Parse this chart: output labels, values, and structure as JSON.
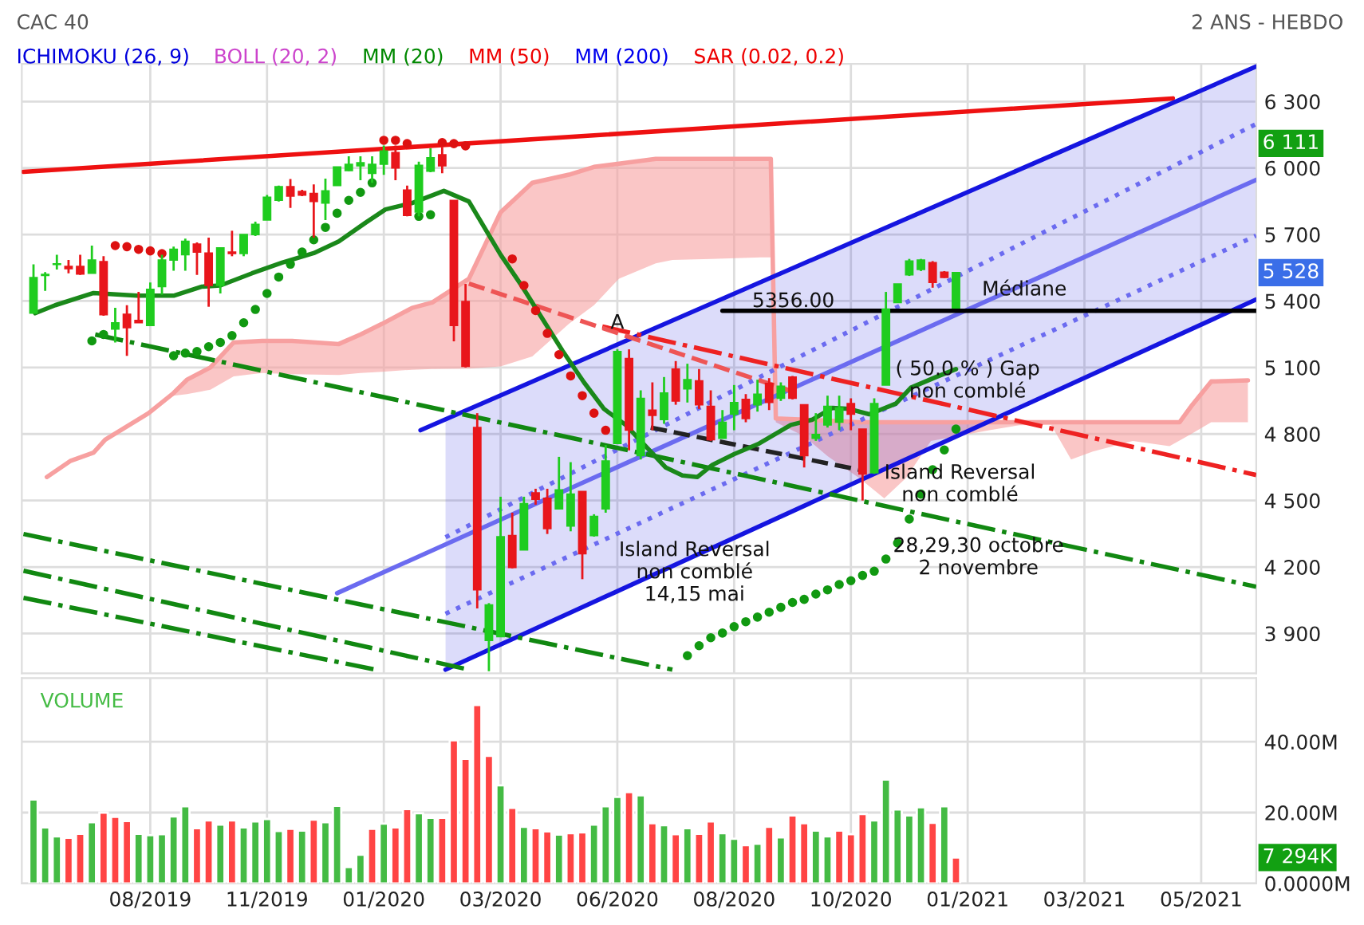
{
  "chart_data": [
    {
      "type": "candlestick",
      "title": "CAC 40",
      "subtitle": "2 ANS - HEBDO",
      "annotations": [
        "ICHIMOKU (26, 9)",
        "BOLL (20, 2)",
        "MM (20)",
        "MM (50)",
        "MM (200)",
        "SAR (0.02, 0.2)",
        {
          "text": "6 111",
          "y": 6111
        },
        {
          "text": "5 528",
          "y": 5528
        },
        {
          "text": "A",
          "x": "2020-06-05",
          "y": 5300
        },
        {
          "text": "( 50.0 % ) Gap\nnon comblé",
          "x": "2021-01-01",
          "y": 5040
        },
        {
          "text": "Médiane",
          "x": "2021-02-04",
          "y": 5450
        },
        "5356.00",
        "Island Reversal\nnon comblé\n14,15 mai",
        "Island Reversal\nnon comblé",
        "28,29,30 octobre\n2 novembre"
      ],
      "xlim": [
        "2019-06-14",
        "2021-06-23"
      ],
      "ylim": [
        3720,
        6470
      ],
      "xticks": [
        {
          "value": "2019-08-30",
          "label": null
        },
        {
          "value": "2019-11-08",
          "label": null
        },
        {
          "value": "2020-01-17",
          "label": null
        },
        {
          "value": "2020-03-27",
          "label": null
        },
        {
          "value": "2020-06-05",
          "label": null
        },
        {
          "value": "2020-08-14",
          "label": null
        },
        {
          "value": "2020-10-23",
          "label": null
        },
        {
          "value": "2021-01-01",
          "label": null
        },
        {
          "value": "2021-03-12",
          "label": null
        },
        {
          "value": "2021-05-21",
          "label": null
        }
      ],
      "yticks": [
        {
          "value": 3900,
          "label": "3 900"
        },
        {
          "value": 4200,
          "label": "4 200"
        },
        {
          "value": 4500,
          "label": "4 500"
        },
        {
          "value": 4800,
          "label": "4 800"
        },
        {
          "value": 5100,
          "label": "5 100"
        },
        {
          "value": 5400,
          "label": "5 400"
        },
        {
          "value": 5700,
          "label": "5 700"
        },
        {
          "value": 6000,
          "label": "6 000"
        },
        {
          "value": 6300,
          "label": "6 300"
        }
      ],
      "tick_labels": "y",
      "grid": true,
      "series": [
        {
          "type": "line",
          "color": "#f7a0a0",
          "x": [
            "2019-06-29",
            "2019-07-13",
            "2019-07-27",
            "2019-08-03",
            "2019-08-29",
            "2019-09-13",
            "2019-09-21",
            "2019-10-05",
            "2019-10-19",
            "2019-11-05",
            "2019-11-23",
            "2019-12-21",
            "2020-01-03",
            "2020-01-16",
            "2020-02-03",
            "2020-02-15",
            "2020-03-08",
            "2020-03-27",
            "2020-04-15",
            "2020-05-07",
            "2020-05-22",
            "2020-06-06",
            "2020-06-28",
            "2020-07-08",
            "2020-07-31",
            "2020-08-30",
            "2020-09-05",
            "2020-09-08",
            "2020-09-25",
            "2020-10-09",
            "2020-10-28",
            "2020-11-12",
            "2020-11-25",
            "2020-12-10",
            "2021-01-14",
            "2021-02-01",
            "2021-02-20",
            "2021-03-04",
            "2021-03-17",
            "2021-04-10",
            "2021-05-02",
            "2021-05-08",
            "2021-05-15",
            "2021-05-27",
            "2021-06-18"
          ],
          "values": [
            4606,
            4678,
            4716,
            4774,
            4894,
            4985,
            5045,
            5100,
            5213,
            5220,
            5220,
            5206,
            5249,
            5297,
            5369,
            5393,
            5500,
            5800,
            5933,
            5970,
            6005,
            6020,
            6041,
            6041,
            6041,
            6041,
            6041,
            4870,
            4865,
            4860,
            4853,
            4853,
            4853,
            4853,
            4853,
            4853,
            4853,
            4853,
            4853,
            4853,
            4853,
            4853,
            4925,
            5037,
            5042
          ],
          "upper": [
            4606,
            4678,
            4716,
            4774,
            4894,
            4985,
            5045,
            5100,
            5213,
            5220,
            5220,
            5206,
            5249,
            5297,
            5369,
            5393,
            5500,
            5800,
            5933,
            5970,
            6005,
            6020,
            6041,
            6041,
            6041,
            6041,
            6041,
            4870,
            4865,
            4860,
            4853,
            4853,
            4853,
            4853,
            4853,
            4853,
            4853,
            4853,
            4853,
            4853,
            4853,
            4853,
            4925,
            5037,
            5042
          ],
          "lower": [
            4606,
            4678,
            4716,
            4774,
            4894,
            4973,
            4980,
            5000,
            5060,
            5075,
            5070,
            5066,
            5075,
            5081,
            5090,
            5093,
            5095,
            5105,
            5150,
            5297,
            5381,
            5501,
            5570,
            5585,
            5590,
            5597,
            5597,
            4853,
            4790,
            4700,
            4601,
            4510,
            4601,
            4769,
            4817,
            4840,
            4841,
            4685,
            4721,
            4769,
            4745,
            4770,
            4800,
            4853,
            4853
          ]
        },
        {
          "type": "line",
          "color": "#ee1111",
          "line_style": "solid",
          "x": [
            "2019-06-15",
            "2021-05-04"
          ],
          "values": [
            5983,
            6314
          ]
        },
        {
          "type": "line",
          "color": "#1515e0",
          "line_style": "solid",
          "x": [
            "2020-02-08",
            "2021-06-23"
          ],
          "values": [
            4817,
            6458
          ]
        },
        {
          "type": "line",
          "color": "#1515e0",
          "line_style": "solid",
          "x": [
            "2020-02-23",
            "2021-06-23"
          ],
          "values": [
            3737,
            5407
          ],
          "lower": [
            3737,
            5407
          ],
          "upper": [
            4867,
            6458
          ]
        },
        {
          "type": "line",
          "color": "#6b6bf0",
          "line_style": "solid",
          "x": [
            "2019-12-20",
            "2021-06-23"
          ],
          "values": [
            4082,
            5947
          ]
        },
        {
          "type": "line",
          "color": "#6b6bf0",
          "line_style": "dotted",
          "x": [
            "2020-02-23",
            "2021-06-23"
          ],
          "values": [
            4334,
            6199
          ]
        },
        {
          "type": "line",
          "color": "#6b6bf0",
          "line_style": "dotted",
          "x": [
            "2020-02-23",
            "2021-06-23"
          ],
          "values": [
            3989,
            5695
          ]
        },
        {
          "type": "line",
          "color": "#ee2222",
          "line_style": "dashdot",
          "x": [
            "2020-05-27",
            "2021-06-23"
          ],
          "values": [
            5285,
            4615
          ]
        },
        {
          "type": "line",
          "color": "#ee5555",
          "line_style": "dashed",
          "x": [
            "2020-03-08",
            "2020-09-16"
          ],
          "values": [
            5479,
            4997
          ]
        },
        {
          "type": "line",
          "color": "#118811",
          "line_style": "dashdot",
          "x": [
            "2019-07-28",
            "2021-06-23"
          ],
          "values": [
            5249,
            4111
          ]
        },
        {
          "type": "line",
          "color": "#118811",
          "line_style": "dashdot",
          "x": [
            "2019-06-15",
            "2020-07-08"
          ],
          "values": [
            4349,
            3737
          ]
        },
        {
          "type": "line",
          "color": "#118811",
          "line_style": "dashdot",
          "x": [
            "2019-06-15",
            "2020-03-08"
          ],
          "values": [
            4183,
            3737
          ]
        },
        {
          "type": "line",
          "color": "#118811",
          "line_style": "dashdot",
          "x": [
            "2019-06-15",
            "2020-01-12"
          ],
          "values": [
            4061,
            3737
          ]
        },
        {
          "type": "line",
          "color": "#222222",
          "line_style": "dashed",
          "x": [
            "2020-06-25",
            "2020-10-29"
          ],
          "values": [
            4829,
            4637
          ]
        },
        {
          "type": "line",
          "color": "#000000",
          "line_style": "solid",
          "x": [
            "2020-08-07",
            "2021-06-23"
          ],
          "values": [
            5356,
            5356
          ]
        },
        {
          "type": "line",
          "color": "#1a881a",
          "line_style": "solid",
          "x": [
            "2019-06-22",
            "2019-07-04",
            "2019-07-27",
            "2019-08-22",
            "2019-09-13",
            "2019-09-30",
            "2019-10-11",
            "2019-10-30",
            "2019-11-17",
            "2019-12-06",
            "2019-12-21",
            "2020-01-06",
            "2020-01-18",
            "2020-02-03",
            "2020-02-22",
            "2020-03-08",
            "2020-03-27",
            "2020-04-09",
            "2020-04-21",
            "2020-05-03",
            "2020-05-16",
            "2020-05-28",
            "2020-06-10",
            "2020-06-22",
            "2020-07-04",
            "2020-07-14",
            "2020-07-23",
            "2020-08-01",
            "2020-08-14",
            "2020-08-29",
            "2020-09-17",
            "2020-09-30",
            "2020-10-12",
            "2020-10-22",
            "2020-11-03",
            "2020-11-19",
            "2020-11-28",
            "2020-12-13",
            "2020-12-25"
          ],
          "values": [
            5345,
            5381,
            5436,
            5424,
            5424,
            5465,
            5470,
            5525,
            5573,
            5616,
            5669,
            5753,
            5813,
            5842,
            5897,
            5849,
            5609,
            5465,
            5321,
            5177,
            5033,
            4913,
            4841,
            4745,
            4649,
            4613,
            4606,
            4661,
            4709,
            4757,
            4841,
            4865,
            4918,
            4913,
            4889,
            4937,
            5009,
            5057,
            5093
          ]
        },
        {
          "type": "scatter",
          "color": "#119911",
          "marker": "circle",
          "x": [
            "2019-07-26",
            "2019-08-02",
            "2019-09-13",
            "2019-09-20",
            "2019-09-27",
            "2019-10-04",
            "2019-10-11",
            "2019-10-18",
            "2019-10-25",
            "2019-11-01",
            "2019-11-08",
            "2019-11-15",
            "2019-11-22",
            "2019-11-29",
            "2019-12-06",
            "2019-12-13",
            "2019-12-20",
            "2019-12-27",
            "2020-01-03",
            "2020-01-10",
            "2020-02-07",
            "2020-02-14",
            "2020-07-17",
            "2020-07-24",
            "2020-07-31",
            "2020-08-07",
            "2020-08-14",
            "2020-08-21",
            "2020-08-28",
            "2020-09-04",
            "2020-09-11",
            "2020-09-18",
            "2020-09-25",
            "2020-10-02",
            "2020-10-09",
            "2020-10-16",
            "2020-10-23",
            "2020-10-30",
            "2020-11-06",
            "2020-11-13",
            "2020-11-20",
            "2020-11-27",
            "2020-12-04",
            "2020-12-11",
            "2020-12-18",
            "2020-12-25"
          ],
          "values": [
            5220,
            5249,
            5153,
            5165,
            5172,
            5194,
            5213,
            5244,
            5302,
            5362,
            5434,
            5508,
            5566,
            5621,
            5676,
            5732,
            5796,
            5854,
            5890,
            5933,
            5782,
            5789,
            3800,
            3845,
            3881,
            3902,
            3931,
            3953,
            3974,
            3996,
            4018,
            4040,
            4054,
            4078,
            4097,
            4121,
            4138,
            4162,
            4181,
            4236,
            4308,
            4416,
            4529,
            4639,
            4728,
            4822
          ]
        },
        {
          "type": "scatter",
          "color": "#dd1111",
          "marker": "circle",
          "x": [
            "2019-08-09",
            "2019-08-16",
            "2019-08-23",
            "2019-08-30",
            "2019-09-06",
            "2020-01-17",
            "2020-01-24",
            "2020-01-31",
            "2020-02-21",
            "2020-02-28",
            "2020-03-06",
            "2020-04-03",
            "2020-04-10",
            "2020-04-17",
            "2020-04-24",
            "2020-05-01",
            "2020-05-08",
            "2020-05-15",
            "2020-05-22",
            "2020-05-29"
          ],
          "values": [
            5650,
            5645,
            5633,
            5626,
            5614,
            6125,
            6125,
            6110,
            6115,
            6110,
            6100,
            5590,
            5470,
            5357,
            5254,
            5158,
            5062,
            4973,
            4894,
            4817
          ]
        },
        {
          "type": "candlestick",
          "x": [
            "2019-06-21",
            "2019-06-28",
            "2019-07-05",
            "2019-07-12",
            "2019-07-19",
            "2019-07-26",
            "2019-08-02",
            "2019-08-09",
            "2019-08-16",
            "2019-08-23",
            "2019-08-30",
            "2019-09-06",
            "2019-09-13",
            "2019-09-20",
            "2019-09-27",
            "2019-10-04",
            "2019-10-11",
            "2019-10-18",
            "2019-10-25",
            "2019-11-01",
            "2019-11-08",
            "2019-11-15",
            "2019-11-22",
            "2019-11-29",
            "2019-12-06",
            "2019-12-13",
            "2019-12-20",
            "2019-12-27",
            "2020-01-03",
            "2020-01-10",
            "2020-01-17",
            "2020-01-24",
            "2020-01-31",
            "2020-02-07",
            "2020-02-14",
            "2020-02-21",
            "2020-02-28",
            "2020-03-06",
            "2020-03-13",
            "2020-03-20",
            "2020-03-27",
            "2020-04-03",
            "2020-04-10",
            "2020-04-17",
            "2020-04-24",
            "2020-05-01",
            "2020-05-08",
            "2020-05-15",
            "2020-05-22",
            "2020-05-29",
            "2020-06-05",
            "2020-06-12",
            "2020-06-19",
            "2020-06-26",
            "2020-07-03",
            "2020-07-10",
            "2020-07-17",
            "2020-07-24",
            "2020-07-31",
            "2020-08-07",
            "2020-08-14",
            "2020-08-21",
            "2020-08-28",
            "2020-09-04",
            "2020-09-11",
            "2020-09-18",
            "2020-09-25",
            "2020-10-02",
            "2020-10-09",
            "2020-10-16",
            "2020-10-23",
            "2020-10-30",
            "2020-11-06",
            "2020-11-13",
            "2020-11-20",
            "2020-11-27",
            "2020-12-04",
            "2020-12-11",
            "2020-12-18",
            "2020-12-25"
          ],
          "ohlc": [
            [
              5345,
              5565,
              5345,
              5506
            ],
            [
              5515,
              5530,
              5446,
              5520
            ],
            [
              5565,
              5609,
              5542,
              5568
            ],
            [
              5556,
              5585,
              5525,
              5546
            ],
            [
              5556,
              5609,
              5518,
              5522
            ],
            [
              5525,
              5650,
              5525,
              5585
            ],
            [
              5578,
              5602,
              5333,
              5338
            ],
            [
              5273,
              5369,
              5213,
              5302
            ],
            [
              5340,
              5381,
              5153,
              5280
            ],
            [
              5312,
              5441,
              5302,
              5302
            ],
            [
              5290,
              5484,
              5290,
              5453
            ],
            [
              5465,
              5609,
              5429,
              5585
            ],
            [
              5585,
              5645,
              5537,
              5633
            ],
            [
              5609,
              5681,
              5537,
              5669
            ],
            [
              5657,
              5664,
              5518,
              5621
            ],
            [
              5616,
              5686,
              5374,
              5470
            ],
            [
              5470,
              5640,
              5434,
              5640
            ],
            [
              5621,
              5717,
              5602,
              5614
            ],
            [
              5614,
              5700,
              5602,
              5700
            ],
            [
              5700,
              5758,
              5693,
              5746
            ],
            [
              5765,
              5878,
              5765,
              5868
            ],
            [
              5854,
              5921,
              5849,
              5916
            ],
            [
              5916,
              5950,
              5820,
              5873
            ],
            [
              5894,
              5902,
              5873,
              5878
            ],
            [
              5885,
              5926,
              5686,
              5849
            ],
            [
              5842,
              5952,
              5765,
              5897
            ],
            [
              5921,
              6005,
              5921,
              6005
            ],
            [
              5988,
              6053,
              5986,
              6017
            ],
            [
              6010,
              6053,
              5945,
              6024
            ],
            [
              5976,
              6053,
              5933,
              6017
            ],
            [
              6017,
              6101,
              5969,
              6077
            ],
            [
              6070,
              6101,
              5945,
              6000
            ],
            [
              5901,
              5921,
              5782,
              5786
            ],
            [
              5801,
              6029,
              5782,
              6012
            ],
            [
              5986,
              6089,
              5981,
              6046
            ],
            [
              6060,
              6094,
              5976,
              6010
            ],
            [
              5854,
              5854,
              5218,
              5290
            ],
            [
              5398,
              5477,
              5100,
              5105
            ],
            [
              4829,
              4894,
              4013,
              4097
            ],
            [
              3869,
              4037,
              3730,
              4029
            ],
            [
              3886,
              4517,
              3886,
              4337
            ],
            [
              4342,
              4445,
              4194,
              4198
            ],
            [
              4277,
              4517,
              4277,
              4486
            ],
            [
              4534,
              4553,
              4481,
              4505
            ],
            [
              4510,
              4553,
              4349,
              4373
            ],
            [
              4462,
              4697,
              4462,
              4548
            ],
            [
              4385,
              4673,
              4361,
              4529
            ],
            [
              4541,
              4541,
              4145,
              4260
            ],
            [
              4342,
              4438,
              4337,
              4428
            ],
            [
              4462,
              4750,
              4445,
              4678
            ],
            [
              4757,
              5182,
              4757,
              5172
            ],
            [
              5141,
              5182,
              4726,
              4817
            ],
            [
              4702,
              4997,
              4685,
              4961
            ],
            [
              4908,
              5033,
              4817,
              4884
            ],
            [
              4865,
              5057,
              4846,
              4985
            ],
            [
              5093,
              5129,
              4932,
              4949
            ],
            [
              5004,
              5117,
              4942,
              5045
            ],
            [
              5040,
              5093,
              4913,
              4932
            ],
            [
              4925,
              4997,
              4769,
              4774
            ],
            [
              4781,
              4908,
              4781,
              4853
            ],
            [
              4889,
              5021,
              4817,
              4942
            ],
            [
              4956,
              4980,
              4853,
              4870
            ],
            [
              4932,
              5045,
              4901,
              4980
            ],
            [
              5028,
              5052,
              4908,
              4942
            ],
            [
              4961,
              5033,
              4949,
              5016
            ],
            [
              5057,
              5062,
              4956,
              4961
            ],
            [
              4932,
              4932,
              4649,
              4702
            ],
            [
              4781,
              4894,
              4769,
              4798
            ],
            [
              4841,
              4973,
              4829,
              4925
            ],
            [
              4853,
              4973,
              4817,
              4918
            ],
            [
              4937,
              4961,
              4817,
              4889
            ],
            [
              4822,
              4822,
              4500,
              4620
            ],
            [
              4625,
              4961,
              4620,
              4937
            ],
            [
              5021,
              5441,
              5021,
              5364
            ],
            [
              5393,
              5477,
              5393,
              5477
            ],
            [
              5518,
              5590,
              5513,
              5580
            ],
            [
              5542,
              5590,
              5535,
              5585
            ],
            [
              5573,
              5580,
              5460,
              5484
            ],
            [
              5530,
              5535,
              5504,
              5506
            ],
            [
              5369,
              5528,
              5369,
              5528
            ]
          ],
          "colors": [
            "#1fcc1f",
            "#1fcc1f",
            "#1fcc1f",
            "#e8161b",
            "#e8161b",
            "#1fcc1f",
            "#e8161b",
            "#1fcc1f",
            "#e8161b",
            "#e8161b",
            "#1fcc1f",
            "#1fcc1f",
            "#1fcc1f",
            "#1fcc1f",
            "#e8161b",
            "#e8161b",
            "#1fcc1f",
            "#e8161b",
            "#1fcc1f",
            "#1fcc1f",
            "#1fcc1f",
            "#1fcc1f",
            "#e8161b",
            "#e8161b",
            "#e8161b",
            "#1fcc1f",
            "#1fcc1f",
            "#1fcc1f",
            "#1fcc1f",
            "#1fcc1f",
            "#1fcc1f",
            "#e8161b",
            "#e8161b",
            "#1fcc1f",
            "#1fcc1f",
            "#e8161b",
            "#e8161b",
            "#e8161b",
            "#e8161b",
            "#1fcc1f",
            "#1fcc1f",
            "#e8161b",
            "#1fcc1f",
            "#e8161b",
            "#e8161b",
            "#1fcc1f",
            "#1fcc1f",
            "#e8161b",
            "#1fcc1f",
            "#1fcc1f",
            "#1fcc1f",
            "#e8161b",
            "#1fcc1f",
            "#e8161b",
            "#1fcc1f",
            "#e8161b",
            "#1fcc1f",
            "#e8161b",
            "#e8161b",
            "#1fcc1f",
            "#1fcc1f",
            "#e8161b",
            "#1fcc1f",
            "#e8161b",
            "#1fcc1f",
            "#e8161b",
            "#e8161b",
            "#1fcc1f",
            "#1fcc1f",
            "#1fcc1f",
            "#e8161b",
            "#e8161b",
            "#1fcc1f",
            "#1fcc1f",
            "#1fcc1f",
            "#1fcc1f",
            "#1fcc1f",
            "#e8161b",
            "#e8161b",
            "#1fcc1f"
          ]
        }
      ]
    },
    {
      "type": "bar",
      "annotations": [
        "VOLUME",
        "7 294K"
      ],
      "x": [
        "2019-06-21",
        "2019-06-28",
        "2019-07-05",
        "2019-07-12",
        "2019-07-19",
        "2019-07-26",
        "2019-08-02",
        "2019-08-09",
        "2019-08-16",
        "2019-08-23",
        "2019-08-30",
        "2019-09-06",
        "2019-09-13",
        "2019-09-20",
        "2019-09-27",
        "2019-10-04",
        "2019-10-11",
        "2019-10-18",
        "2019-10-25",
        "2019-11-01",
        "2019-11-08",
        "2019-11-15",
        "2019-11-22",
        "2019-11-29",
        "2019-12-06",
        "2019-12-13",
        "2019-12-20",
        "2019-12-27",
        "2020-01-03",
        "2020-01-10",
        "2020-01-17",
        "2020-01-24",
        "2020-01-31",
        "2020-02-07",
        "2020-02-14",
        "2020-02-21",
        "2020-02-28",
        "2020-03-06",
        "2020-03-13",
        "2020-03-20",
        "2020-03-27",
        "2020-04-03",
        "2020-04-10",
        "2020-04-17",
        "2020-04-24",
        "2020-05-01",
        "2020-05-08",
        "2020-05-15",
        "2020-05-22",
        "2020-05-29",
        "2020-06-05",
        "2020-06-12",
        "2020-06-19",
        "2020-06-26",
        "2020-07-03",
        "2020-07-10",
        "2020-07-17",
        "2020-07-24",
        "2020-07-31",
        "2020-08-07",
        "2020-08-14",
        "2020-08-21",
        "2020-08-28",
        "2020-09-04",
        "2020-09-11",
        "2020-09-18",
        "2020-09-25",
        "2020-10-02",
        "2020-10-09",
        "2020-10-16",
        "2020-10-23",
        "2020-10-30",
        "2020-11-06",
        "2020-11-13",
        "2020-11-20",
        "2020-11-27",
        "2020-12-04",
        "2020-12-11",
        "2020-12-18",
        "2020-12-25"
      ],
      "values": [
        23.7,
        15.8,
        13.3,
        12.9,
        14.0,
        17.3,
        20.0,
        18.8,
        17.6,
        14.0,
        13.6,
        13.9,
        18.9,
        21.8,
        15.6,
        17.8,
        16.6,
        17.8,
        15.8,
        17.5,
        18.2,
        14.8,
        15.4,
        14.9,
        18.0,
        17.3,
        21.9,
        4.6,
        8.1,
        15.4,
        16.9,
        15.8,
        21.0,
        19.8,
        18.5,
        18.5,
        40.4,
        35.2,
        50.4,
        36.0,
        27.7,
        21.3,
        16.0,
        15.6,
        14.7,
        13.8,
        14.2,
        14.4,
        16.6,
        21.8,
        24.4,
        25.8,
        24.9,
        17.0,
        16.4,
        13.9,
        15.6,
        14.0,
        17.5,
        14.2,
        12.6,
        10.8,
        11.2,
        16.0,
        13.0,
        19.2,
        17.0,
        14.9,
        13.3,
        14.9,
        13.9,
        19.6,
        17.8,
        29.3,
        20.9,
        19.2,
        21.5,
        17.1,
        21.8,
        7.3
      ],
      "colors": [
        "#44bb44",
        "#44bb44",
        "#44bb44",
        "#ff4444",
        "#ff4444",
        "#44bb44",
        "#ff4444",
        "#ff4444",
        "#ff4444",
        "#44bb44",
        "#44bb44",
        "#44bb44",
        "#44bb44",
        "#44bb44",
        "#ff4444",
        "#ff4444",
        "#44bb44",
        "#ff4444",
        "#44bb44",
        "#44bb44",
        "#44bb44",
        "#44bb44",
        "#ff4444",
        "#44bb44",
        "#ff4444",
        "#44bb44",
        "#44bb44",
        "#44bb44",
        "#44bb44",
        "#ff4444",
        "#44bb44",
        "#ff4444",
        "#ff4444",
        "#44bb44",
        "#44bb44",
        "#ff4444",
        "#ff4444",
        "#ff4444",
        "#ff4444",
        "#ff4444",
        "#44bb44",
        "#ff4444",
        "#44bb44",
        "#ff4444",
        "#ff4444",
        "#44bb44",
        "#ff4444",
        "#ff4444",
        "#44bb44",
        "#44bb44",
        "#44bb44",
        "#ff4444",
        "#44bb44",
        "#ff4444",
        "#44bb44",
        "#ff4444",
        "#44bb44",
        "#ff4444",
        "#ff4444",
        "#44bb44",
        "#44bb44",
        "#ff4444",
        "#44bb44",
        "#ff4444",
        "#44bb44",
        "#ff4444",
        "#ff4444",
        "#44bb44",
        "#44bb44",
        "#ff4444",
        "#ff4444",
        "#ff4444",
        "#44bb44",
        "#44bb44",
        "#44bb44",
        "#44bb44",
        "#44bb44",
        "#ff4444",
        "#44bb44",
        "#ff4444"
      ],
      "xlim": [
        "2019-06-14",
        "2021-06-23"
      ],
      "ylim": [
        0,
        58
      ],
      "xticks": [
        {
          "value": "2019-08-30",
          "label": "08/2019"
        },
        {
          "value": "2019-11-08",
          "label": "11/2019"
        },
        {
          "value": "2020-01-17",
          "label": "01/2020"
        },
        {
          "value": "2020-03-27",
          "label": "03/2020"
        },
        {
          "value": "2020-06-05",
          "label": "06/2020"
        },
        {
          "value": "2020-08-14",
          "label": "08/2020"
        },
        {
          "value": "2020-10-23",
          "label": "10/2020"
        },
        {
          "value": "2021-01-01",
          "label": "01/2021"
        },
        {
          "value": "2021-03-12",
          "label": "03/2021"
        },
        {
          "value": "2021-05-21",
          "label": "05/2021"
        }
      ],
      "yticks": [
        {
          "value": 0,
          "label": "0.0000M"
        },
        {
          "value": 20,
          "label": "20.00M"
        },
        {
          "value": 40,
          "label": "40.00M"
        }
      ],
      "grid": true
    }
  ]
}
